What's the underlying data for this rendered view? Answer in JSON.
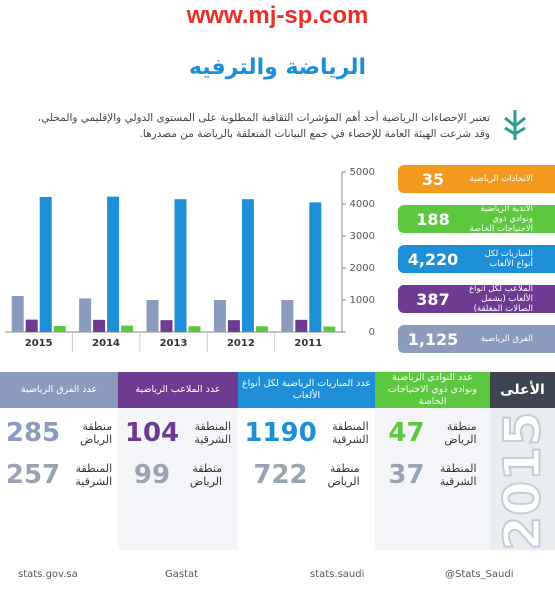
{
  "watermark": "www.mj-sp.com",
  "title": "الرياضة والترفيه",
  "intro": "تعتبر الإحصاءات الرياضية أحد أهم المؤشرات الثقافية المطلوبة على المستوى الدولي والإقليمي والمحلي، وقد شرعت الهيئة العامة للإحصاء في جمع البيانات المتعلقة بالرياضة من مصدرها.",
  "cards": [
    {
      "label": "الاتحادات الرياضية",
      "value": "35",
      "color": "#f39a1e"
    },
    {
      "label": "الأندية الرياضية ونوادي ذوي الاحتياجات الخاصة",
      "value": "188",
      "color": "#5cc83f"
    },
    {
      "label": "المباريات لكل أنواع الألعاب",
      "value": "4,220",
      "color": "#1e8fd6"
    },
    {
      "label": "الملاعب لكل أنواع الألعاب (بشمل الصالات المغلقة)",
      "value": "387",
      "color": "#6d3b91"
    },
    {
      "label": "الفرق الرياضية",
      "value": "1,125",
      "color": "#8a9bbd"
    }
  ],
  "chart_data": {
    "type": "bar",
    "categories": [
      "2015",
      "2014",
      "2013",
      "2012",
      "2011"
    ],
    "series": [
      {
        "color": "#8a9bbd",
        "values": [
          1125,
          1050,
          1000,
          1000,
          1000
        ]
      },
      {
        "color": "#6d3b91",
        "values": [
          387,
          380,
          370,
          370,
          380
        ]
      },
      {
        "color": "#1e8fd6",
        "values": [
          4220,
          4230,
          4150,
          4150,
          4050
        ]
      },
      {
        "color": "#5cc83f",
        "values": [
          188,
          200,
          180,
          180,
          170
        ]
      }
    ],
    "ylim": [
      0,
      5000
    ],
    "yticks": [
      0,
      1000,
      2000,
      3000,
      4000,
      5000
    ],
    "grid": false
  },
  "table": {
    "top_header": "الأعلى",
    "top_year": "2015",
    "columns": [
      {
        "header": "عدد النوادي الرياضية ونوادي ذوي الاحتياجات الخاصة",
        "color": "#5cc83f",
        "rows": [
          {
            "value": "47",
            "region": "منطقة الرياض"
          },
          {
            "value": "37",
            "region": "المنطقة الشرقية"
          }
        ]
      },
      {
        "header": "عدد المباريات الرياضية لكل أنواع الألعاب",
        "color": "#1e8fd6",
        "rows": [
          {
            "value": "1190",
            "region": "المنطقة الشرقية"
          },
          {
            "value": "722",
            "region": "منطقة الرياض"
          }
        ]
      },
      {
        "header": "عدد الملاعب الرياضية",
        "color": "#6d3b91",
        "rows": [
          {
            "value": "104",
            "region": "المنطقة الشرقية"
          },
          {
            "value": "99",
            "region": "منطقة الرياض"
          }
        ]
      },
      {
        "header": "عدد الفرق الرياضية",
        "color": "#8a9bbd",
        "rows": [
          {
            "value": "285",
            "region": "منطقة الرياض"
          },
          {
            "value": "257",
            "region": "المنطقة الشرقية"
          }
        ]
      }
    ]
  },
  "footer": [
    "@Stats_Saudi",
    "stats.saudi",
    "Gastat",
    "stats.gov.sa"
  ]
}
